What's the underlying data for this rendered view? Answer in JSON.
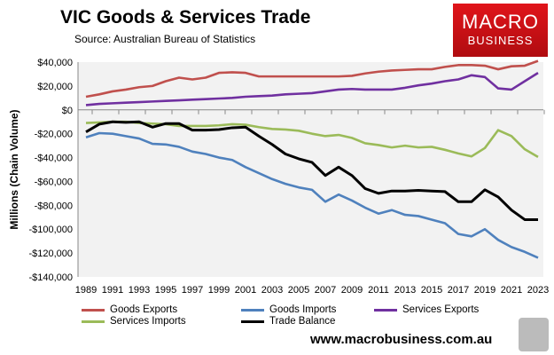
{
  "chart_data": {
    "type": "line",
    "title": "VIC Goods & Services Trade",
    "subtitle": "Source:  Australian Bureau of Statistics",
    "ylabel": "Millions (Chain Volume)",
    "xlabel": "",
    "ylim": [
      -140000,
      40000
    ],
    "yticks": [
      40000,
      20000,
      0,
      -20000,
      -40000,
      -60000,
      -80000,
      -100000,
      -120000,
      -140000
    ],
    "ytick_labels": [
      "$40,000",
      "$20,000",
      "$0",
      "-$20,000",
      "-$40,000",
      "-$60,000",
      "-$80,000",
      "-$100,000",
      "-$120,000",
      "-$140,000"
    ],
    "x": [
      1989,
      1990,
      1991,
      1992,
      1993,
      1994,
      1995,
      1996,
      1997,
      1998,
      1999,
      2000,
      2001,
      2002,
      2003,
      2004,
      2005,
      2006,
      2007,
      2008,
      2009,
      2010,
      2011,
      2012,
      2013,
      2014,
      2015,
      2016,
      2017,
      2018,
      2019,
      2020,
      2021,
      2022,
      2023
    ],
    "xtick_labels": [
      "1989",
      "1991",
      "1993",
      "1995",
      "1997",
      "1999",
      "2001",
      "2003",
      "2005",
      "2007",
      "2009",
      "2011",
      "2013",
      "2015",
      "2017",
      "2019",
      "2021",
      "2023"
    ],
    "grid": false,
    "legend_position": "bottom",
    "series": [
      {
        "name": "Goods Exports",
        "color": "#c0504d",
        "values": [
          11000,
          13000,
          15500,
          17000,
          19000,
          20000,
          24000,
          27000,
          25500,
          27000,
          31000,
          31500,
          31000,
          28000,
          28000,
          28000,
          28000,
          28000,
          28000,
          28000,
          28500,
          30500,
          32000,
          33000,
          33500,
          34000,
          34000,
          36000,
          37500,
          37500,
          37000,
          34000,
          36500,
          37000,
          41000
        ]
      },
      {
        "name": "Goods Imports",
        "color": "#4f81bd",
        "values": [
          -23000,
          -19500,
          -20000,
          -22000,
          -24000,
          -28500,
          -29000,
          -31000,
          -35000,
          -37000,
          -40000,
          -42000,
          -48000,
          -53000,
          -58000,
          -62000,
          -65000,
          -67000,
          -77000,
          -71000,
          -76000,
          -82000,
          -87000,
          -84000,
          -88000,
          -89000,
          -92000,
          -95000,
          -104000,
          -106000,
          -100000,
          -109000,
          -115000,
          -119000,
          -124000
        ]
      },
      {
        "name": "Services Exports",
        "color": "#7030a0",
        "values": [
          4000,
          5000,
          5500,
          6000,
          6500,
          7000,
          7500,
          8000,
          8500,
          9000,
          9500,
          10000,
          11000,
          11500,
          12000,
          13000,
          13500,
          14000,
          15500,
          17000,
          17500,
          17000,
          17000,
          17000,
          18500,
          20500,
          22000,
          24000,
          25500,
          29000,
          27500,
          18000,
          17000,
          24000,
          31000
        ]
      },
      {
        "name": "Services Imports",
        "color": "#9bbb59",
        "values": [
          -11000,
          -10500,
          -10000,
          -10000,
          -11000,
          -11500,
          -12000,
          -13500,
          -13500,
          -13500,
          -13000,
          -12000,
          -12500,
          -14500,
          -16000,
          -16500,
          -17500,
          -20000,
          -22000,
          -21000,
          -23500,
          -28000,
          -29500,
          -31500,
          -30000,
          -31500,
          -31000,
          -33500,
          -36500,
          -39000,
          -32000,
          -17000,
          -22000,
          -33000,
          -39500
        ]
      },
      {
        "name": "Trade Balance",
        "color": "#000000",
        "values": [
          -18500,
          -12000,
          -10000,
          -10500,
          -10000,
          -14500,
          -11500,
          -11500,
          -17000,
          -17000,
          -16500,
          -15000,
          -14500,
          -22000,
          -29000,
          -37000,
          -41000,
          -44000,
          -55000,
          -48000,
          -55000,
          -66000,
          -70000,
          -68000,
          -68000,
          -67500,
          -68000,
          -68500,
          -77000,
          -77000,
          -67000,
          -73000,
          -84000,
          -92000,
          -92000
        ]
      }
    ]
  },
  "logo": {
    "line1": "MACRO",
    "line2": "BUSINESS"
  },
  "footer": {
    "url": "www.macrobusiness.com.au"
  }
}
